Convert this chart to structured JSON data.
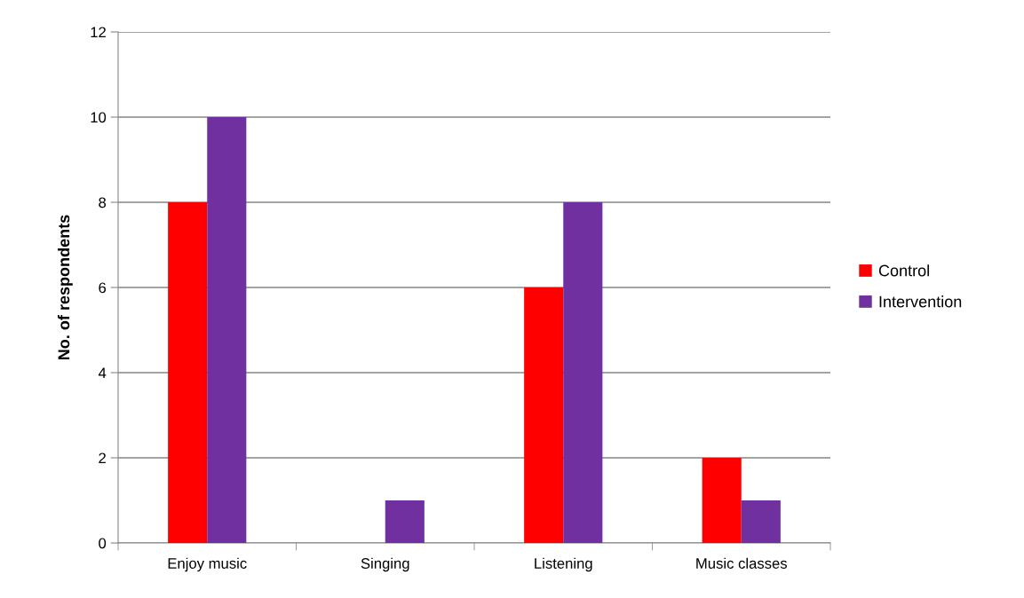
{
  "chart_data": {
    "type": "bar",
    "ylabel": "No. of respondents",
    "categories": [
      "Enjoy music",
      "Singing",
      "Listening",
      "Music classes"
    ],
    "series": [
      {
        "name": "Control",
        "color": "#ff0000",
        "values": [
          8,
          0,
          6,
          2
        ]
      },
      {
        "name": "Intervention",
        "color": "#7030a0",
        "values": [
          10,
          1,
          8,
          1
        ]
      }
    ],
    "ylim": [
      0,
      12
    ],
    "yticks": [
      0,
      2,
      4,
      6,
      8,
      10,
      12
    ],
    "grid": "y",
    "legend": "right"
  }
}
